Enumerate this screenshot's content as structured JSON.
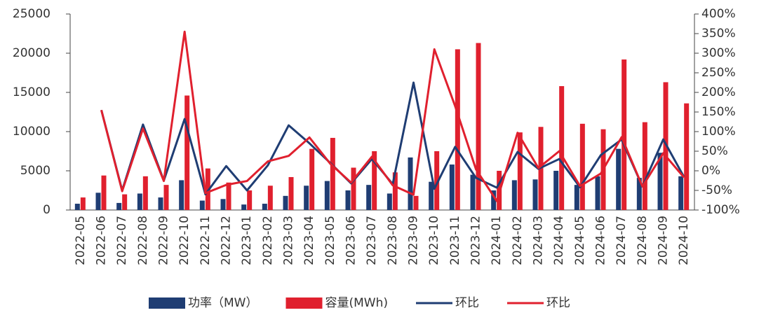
{
  "chart_data": {
    "type": "bar_line",
    "categories": [
      "2022-05",
      "2022-06",
      "2022-07",
      "2022-08",
      "2022-09",
      "2022-10",
      "2022-11",
      "2022-12",
      "2023-01",
      "2023-02",
      "2023-03",
      "2023-04",
      "2023-05",
      "2023-06",
      "2023-07",
      "2023-08",
      "2023-09",
      "2023-10",
      "2023-11",
      "2023-12",
      "2024-01",
      "2024-02",
      "2024-03",
      "2024-04",
      "2024-05",
      "2024-06",
      "2024-07",
      "2024-08",
      "2024-09",
      "2024-10"
    ],
    "series": [
      {
        "name": "功率（MW）",
        "kind": "bar",
        "color": "#1f3d73",
        "values": [
          800,
          2200,
          900,
          2100,
          1600,
          3800,
          1200,
          1400,
          700,
          800,
          1800,
          3100,
          3700,
          2500,
          3200,
          2100,
          6700,
          3600,
          5800,
          4500,
          2500,
          3800,
          3900,
          5000,
          3200,
          4300,
          7800,
          4100,
          7300,
          4300
        ]
      },
      {
        "name": "容量(MWh)",
        "kind": "bar",
        "color": "#e0202e",
        "values": [
          1600,
          4400,
          2000,
          4300,
          3200,
          14600,
          5300,
          3500,
          2500,
          3100,
          4200,
          7800,
          9200,
          5400,
          7500,
          4800,
          1800,
          7500,
          20500,
          21300,
          5000,
          9900,
          10600,
          15800,
          11000,
          10300,
          19200,
          11200,
          16300,
          13600
        ]
      },
      {
        "name": "环比",
        "kind": "line",
        "axis": "y2",
        "color": "#1f3d73",
        "values": [
          null,
          155,
          -50,
          118,
          -25,
          132,
          -60,
          12,
          -50,
          14,
          116,
          70,
          20,
          -32,
          30,
          -34,
          225,
          -46,
          61,
          -18,
          -43,
          48,
          5,
          30,
          -42,
          40,
          80,
          -40,
          80,
          -16
        ]
      },
      {
        "name": "环比",
        "kind": "line",
        "axis": "y2",
        "color": "#e0202e",
        "values": [
          null,
          155,
          -52,
          108,
          -26,
          355,
          -57,
          -36,
          -26,
          24,
          38,
          85,
          18,
          -30,
          36,
          -37,
          -61,
          310,
          165,
          4,
          -77,
          97,
          7,
          50,
          -39,
          -7,
          86,
          -40,
          45,
          -17
        ]
      }
    ],
    "ylim": [
      0,
      25000
    ],
    "yticks": [
      0,
      5000,
      10000,
      15000,
      20000,
      25000
    ],
    "y2lim": [
      -100,
      400
    ],
    "y2ticks": [
      {
        "value": -100,
        "label": "-100%"
      },
      {
        "value": -50,
        "label": "-50%"
      },
      {
        "value": 0,
        "label": "0%"
      },
      {
        "value": 50,
        "label": "50%"
      },
      {
        "value": 100,
        "label": "100%"
      },
      {
        "value": 150,
        "label": "150%"
      },
      {
        "value": 200,
        "label": "200%"
      },
      {
        "value": 250,
        "label": "250%"
      },
      {
        "value": 300,
        "label": "300%"
      },
      {
        "value": 350,
        "label": "350%"
      },
      {
        "value": 400,
        "label": "400%"
      }
    ],
    "legend": "bottom"
  }
}
